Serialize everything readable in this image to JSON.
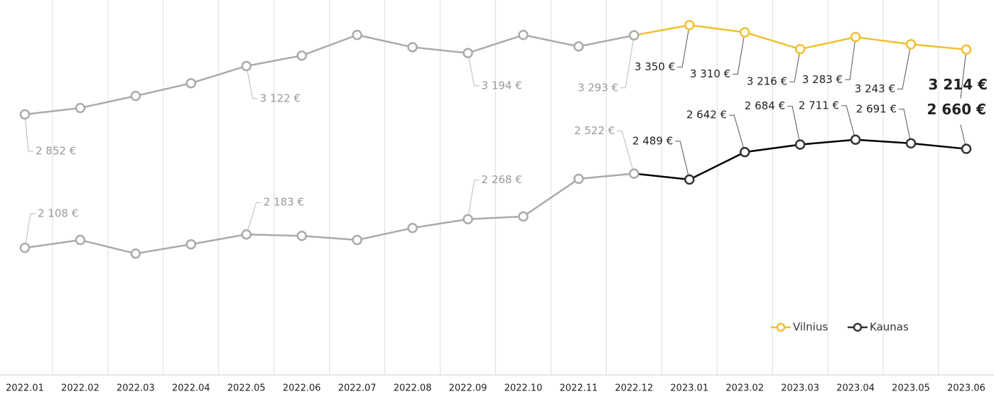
{
  "chart_data": {
    "type": "line",
    "categories": [
      "2022.01",
      "2022.02",
      "2022.03",
      "2022.04",
      "2022.05",
      "2022.06",
      "2022.07",
      "2022.08",
      "2022.09",
      "2022.10",
      "2022.11",
      "2022.12",
      "2023.01",
      "2023.02",
      "2023.03",
      "2023.04",
      "2023.05",
      "2023.06"
    ],
    "series": [
      {
        "name": "Vilnius",
        "color": "#f0c030",
        "values": [
          2852,
          2888,
          2955,
          3026,
          3122,
          3180,
          3295,
          3227,
          3194,
          3295,
          3231,
          3293,
          3350,
          3310,
          3216,
          3283,
          3243,
          3214
        ],
        "value_labels": [
          "2 852 €",
          null,
          null,
          null,
          "3 122 €",
          null,
          null,
          null,
          "3 194 €",
          null,
          null,
          "3 293 €",
          "3 350 €",
          "3 310 €",
          "3 216 €",
          "3 283 €",
          "3 243 €",
          "3 214 €"
        ]
      },
      {
        "name": "Kaunas",
        "color": "#333333",
        "values": [
          2108,
          2152,
          2076,
          2128,
          2183,
          2175,
          2152,
          2219,
          2268,
          2283,
          2493,
          2522,
          2489,
          2642,
          2684,
          2711,
          2691,
          2660
        ],
        "value_labels": [
          "2 108 €",
          null,
          null,
          null,
          "2 183 €",
          null,
          null,
          null,
          "2 268 €",
          null,
          null,
          "2 522 €",
          "2 489 €",
          "2 642 €",
          "2 684 €",
          "2 711 €",
          "2 691 €",
          "2 660 €"
        ]
      }
    ],
    "muted_color": "#aaaaaa",
    "ylim": [
      1400,
      3490
    ],
    "legend": "bottom-right"
  }
}
